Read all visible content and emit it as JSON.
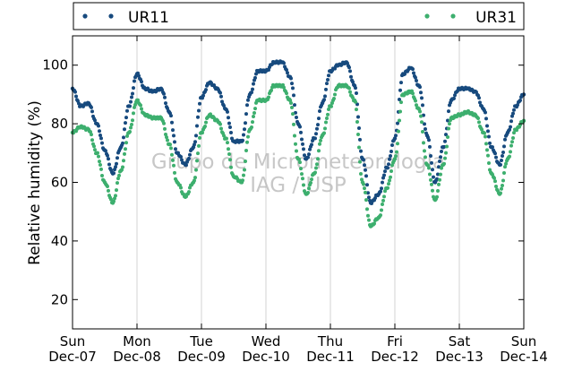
{
  "chart_data": {
    "type": "scatter",
    "title": "",
    "xlabel": "",
    "ylabel": "Relative humidity (%)",
    "x_unit": "days",
    "xlim": [
      "2012-12-07T00:00",
      "2012-12-14T00:00"
    ],
    "ylim": [
      10,
      110
    ],
    "y_ticks": [
      20,
      40,
      60,
      80,
      100
    ],
    "x_ticks": [
      {
        "x": "2012-12-07T00:00",
        "day": "Sun",
        "date": "Dec-07"
      },
      {
        "x": "2012-12-08T00:00",
        "day": "Mon",
        "date": "Dec-08"
      },
      {
        "x": "2012-12-09T00:00",
        "day": "Tue",
        "date": "Dec-09"
      },
      {
        "x": "2012-12-10T00:00",
        "day": "Wed",
        "date": "Dec-10"
      },
      {
        "x": "2012-12-11T00:00",
        "day": "Thu",
        "date": "Dec-11"
      },
      {
        "x": "2012-12-12T00:00",
        "day": "Fri",
        "date": "Dec-12"
      },
      {
        "x": "2012-12-13T00:00",
        "day": "Sat",
        "date": "Dec-13"
      },
      {
        "x": "2012-12-14T00:00",
        "day": "Sun",
        "date": "Dec-14"
      }
    ],
    "grid": "vertical",
    "legend_position": "top",
    "watermark": [
      "Grupo de Micrometeorologia",
      "IAG / USP"
    ],
    "series": [
      {
        "name": "UR11",
        "color": "#174a7e",
        "x": [
          "2012-12-07T00:00",
          "2012-12-07T03:00",
          "2012-12-07T06:00",
          "2012-12-07T09:00",
          "2012-12-07T12:00",
          "2012-12-07T15:00",
          "2012-12-07T18:00",
          "2012-12-07T21:00",
          "2012-12-08T00:00",
          "2012-12-08T03:00",
          "2012-12-08T06:00",
          "2012-12-08T09:00",
          "2012-12-08T12:00",
          "2012-12-08T15:00",
          "2012-12-08T18:00",
          "2012-12-08T21:00",
          "2012-12-09T00:00",
          "2012-12-09T03:00",
          "2012-12-09T06:00",
          "2012-12-09T09:00",
          "2012-12-09T12:00",
          "2012-12-09T15:00",
          "2012-12-09T18:00",
          "2012-12-09T21:00",
          "2012-12-10T00:00",
          "2012-12-10T03:00",
          "2012-12-10T06:00",
          "2012-12-10T09:00",
          "2012-12-10T12:00",
          "2012-12-10T15:00",
          "2012-12-10T18:00",
          "2012-12-10T21:00",
          "2012-12-11T00:00",
          "2012-12-11T03:00",
          "2012-12-11T06:00",
          "2012-12-11T09:00",
          "2012-12-11T12:00",
          "2012-12-11T15:00",
          "2012-12-11T18:00",
          "2012-12-11T21:00",
          "2012-12-12T00:00",
          "2012-12-12T03:00",
          "2012-12-12T06:00",
          "2012-12-12T09:00",
          "2012-12-12T12:00",
          "2012-12-12T15:00",
          "2012-12-12T18:00",
          "2012-12-12T21:00",
          "2012-12-13T00:00",
          "2012-12-13T03:00",
          "2012-12-13T06:00",
          "2012-12-13T09:00",
          "2012-12-13T12:00",
          "2012-12-13T15:00",
          "2012-12-13T18:00",
          "2012-12-13T21:00",
          "2012-12-14T00:00"
        ],
        "y": [
          92,
          86,
          87,
          80,
          71,
          63,
          72,
          86,
          97,
          92,
          91,
          92,
          84,
          70,
          66,
          72,
          89,
          94,
          92,
          85,
          74,
          74,
          90,
          98,
          98,
          101,
          101,
          96,
          80,
          68,
          75,
          87,
          98,
          100,
          101,
          93,
          68,
          53,
          56,
          65,
          75,
          97,
          99,
          93,
          76,
          60,
          72,
          88,
          92,
          92,
          91,
          85,
          72,
          66,
          77,
          86,
          90
        ]
      },
      {
        "name": "UR31",
        "color": "#3daf6e",
        "x": [
          "2012-12-07T00:00",
          "2012-12-07T03:00",
          "2012-12-07T06:00",
          "2012-12-07T09:00",
          "2012-12-07T12:00",
          "2012-12-07T15:00",
          "2012-12-07T18:00",
          "2012-12-07T21:00",
          "2012-12-08T00:00",
          "2012-12-08T03:00",
          "2012-12-08T06:00",
          "2012-12-08T09:00",
          "2012-12-08T12:00",
          "2012-12-08T15:00",
          "2012-12-08T18:00",
          "2012-12-08T21:00",
          "2012-12-09T00:00",
          "2012-12-09T03:00",
          "2012-12-09T06:00",
          "2012-12-09T09:00",
          "2012-12-09T12:00",
          "2012-12-09T15:00",
          "2012-12-09T18:00",
          "2012-12-09T21:00",
          "2012-12-10T00:00",
          "2012-12-10T03:00",
          "2012-12-10T06:00",
          "2012-12-10T09:00",
          "2012-12-10T12:00",
          "2012-12-10T15:00",
          "2012-12-10T18:00",
          "2012-12-10T21:00",
          "2012-12-11T00:00",
          "2012-12-11T03:00",
          "2012-12-11T06:00",
          "2012-12-11T09:00",
          "2012-12-11T12:00",
          "2012-12-11T15:00",
          "2012-12-11T18:00",
          "2012-12-11T21:00",
          "2012-12-12T00:00",
          "2012-12-12T03:00",
          "2012-12-12T06:00",
          "2012-12-12T09:00",
          "2012-12-12T12:00",
          "2012-12-12T15:00",
          "2012-12-12T18:00",
          "2012-12-12T21:00",
          "2012-12-13T00:00",
          "2012-12-13T03:00",
          "2012-12-13T06:00",
          "2012-12-13T09:00",
          "2012-12-13T12:00",
          "2012-12-13T15:00",
          "2012-12-13T18:00",
          "2012-12-13T21:00",
          "2012-12-14T00:00"
        ],
        "y": [
          77,
          79,
          78,
          70,
          60,
          53,
          64,
          77,
          88,
          83,
          82,
          82,
          73,
          60,
          55,
          60,
          77,
          83,
          81,
          75,
          62,
          60,
          78,
          88,
          88,
          93,
          93,
          88,
          68,
          56,
          63,
          76,
          86,
          93,
          93,
          88,
          60,
          45,
          48,
          58,
          68,
          90,
          91,
          85,
          66,
          54,
          66,
          82,
          83,
          84,
          83,
          77,
          63,
          56,
          68,
          78,
          81
        ]
      }
    ]
  }
}
